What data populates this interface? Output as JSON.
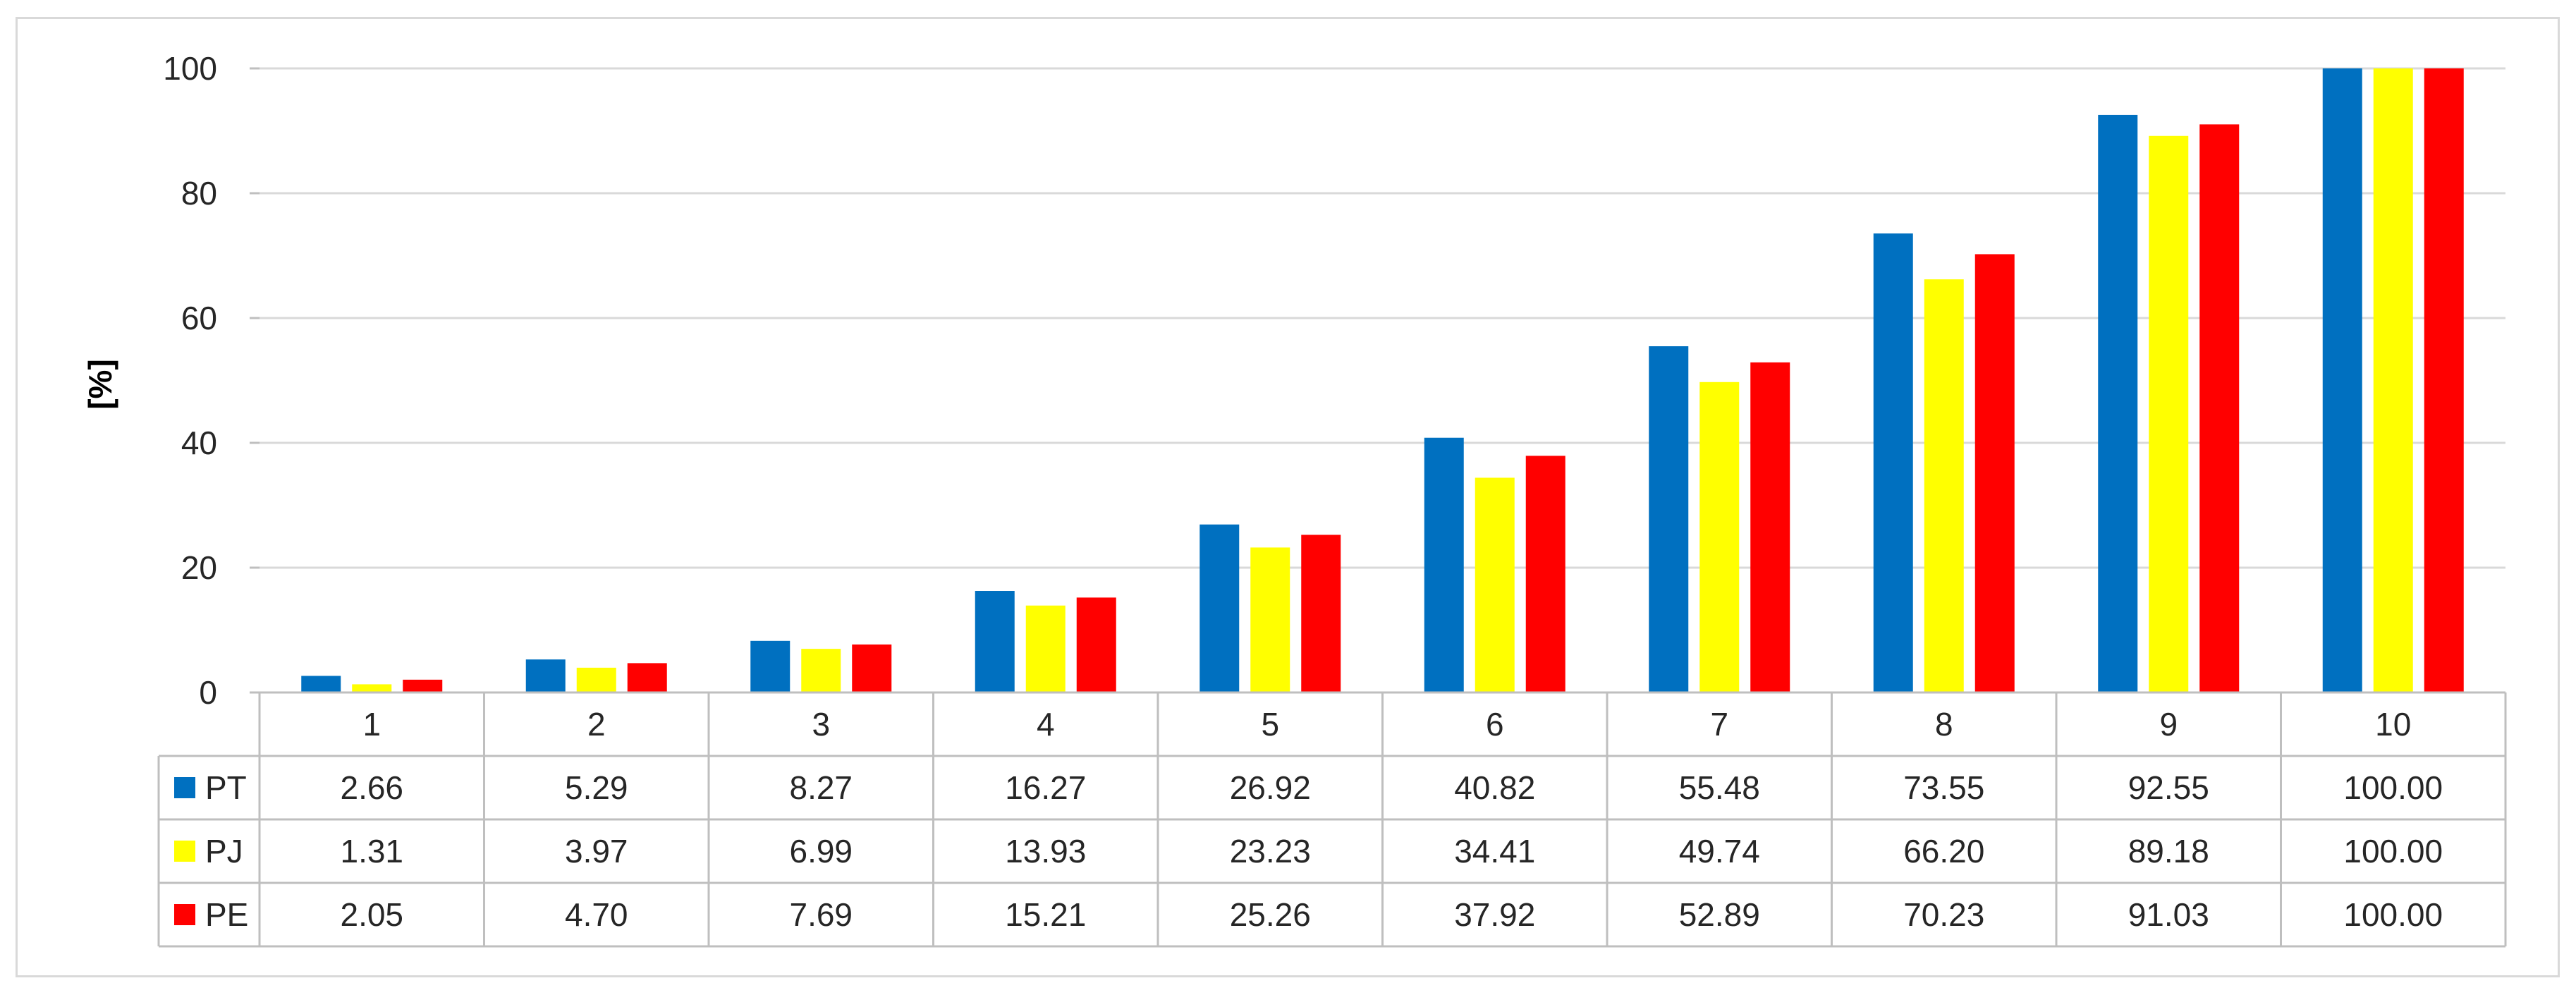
{
  "chart_data": {
    "type": "bar",
    "title": "",
    "xlabel": "",
    "ylabel": "[%]",
    "ylim": [
      0,
      100
    ],
    "yticks": [
      0,
      20,
      40,
      60,
      80,
      100
    ],
    "grid": true,
    "legend": "data-table-left",
    "categories": [
      "1",
      "2",
      "3",
      "4",
      "5",
      "6",
      "7",
      "8",
      "9",
      "10"
    ],
    "series": [
      {
        "name": "PT",
        "color": "#0070C0",
        "values": [
          2.66,
          5.29,
          8.27,
          16.27,
          26.92,
          40.82,
          55.48,
          73.55,
          92.55,
          100.0
        ],
        "labels": [
          "2.66",
          "5.29",
          "8.27",
          "16.27",
          "26.92",
          "40.82",
          "55.48",
          "73.55",
          "92.55",
          "100.00"
        ]
      },
      {
        "name": "PJ",
        "color": "#FFFF00",
        "values": [
          1.31,
          3.97,
          6.99,
          13.93,
          23.23,
          34.41,
          49.74,
          66.2,
          89.18,
          100.0
        ],
        "labels": [
          "1.31",
          "3.97",
          "6.99",
          "13.93",
          "23.23",
          "34.41",
          "49.74",
          "66.20",
          "89.18",
          "100.00"
        ]
      },
      {
        "name": "PE",
        "color": "#FF0000",
        "values": [
          2.05,
          4.7,
          7.69,
          15.21,
          25.26,
          37.92,
          52.89,
          70.23,
          91.03,
          100.0
        ],
        "labels": [
          "2.05",
          "4.70",
          "7.69",
          "15.21",
          "25.26",
          "37.92",
          "52.89",
          "70.23",
          "91.03",
          "100.00"
        ]
      }
    ]
  }
}
